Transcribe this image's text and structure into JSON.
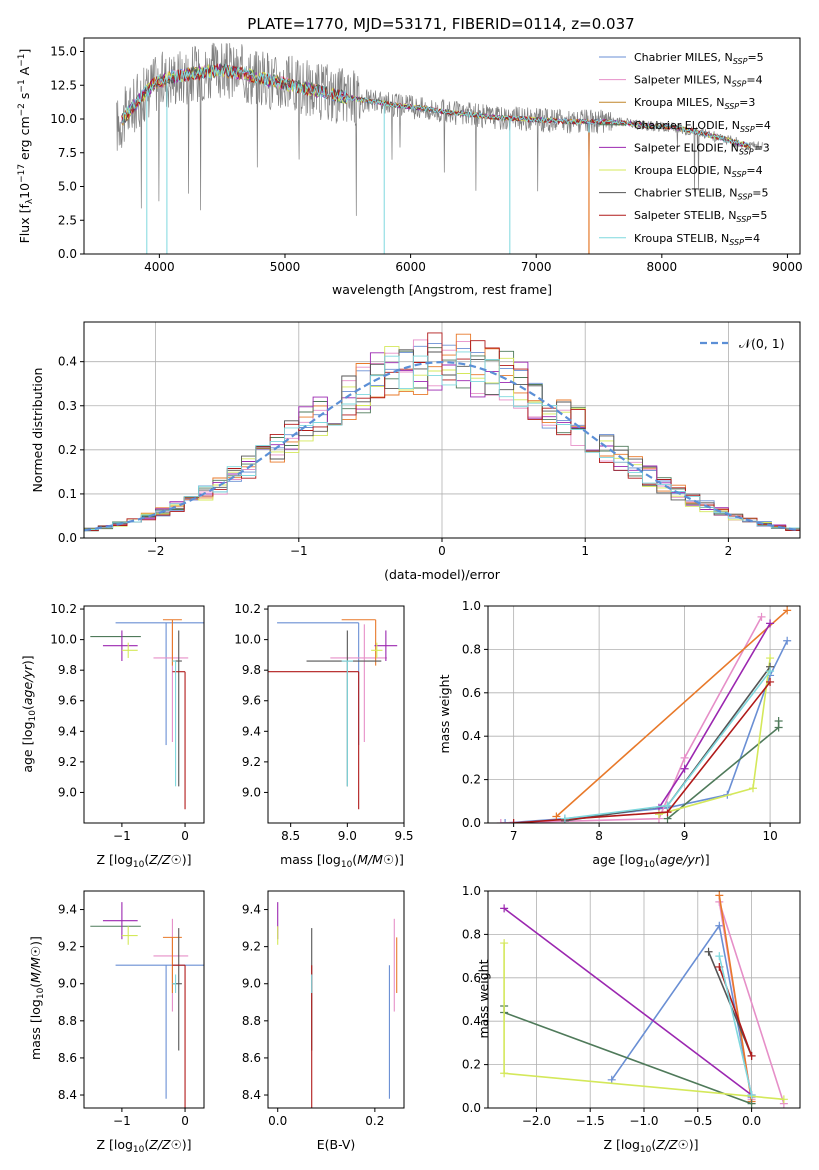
{
  "title": "PLATE=1770, MJD=53171, FIBERID=0114, z=0.037",
  "colors": {
    "Chabrier MILES": "#6a8fd4",
    "Salpeter MILES": "#e68fc8",
    "Kroupa MILES": "#c0862a",
    "Chabrier ELODIE": "#4f7a5a",
    "Salpeter ELODIE": "#9b27b0",
    "Kroupa ELODIE": "#d4e85a",
    "Chabrier STELIB": "#555555",
    "Salpeter STELIB": "#b01a1a",
    "Kroupa STELIB": "#7fd8de",
    "orange": "#e8792a",
    "grid": "#b0b0b0",
    "observed": "#808080",
    "normal": "#5b8fd6"
  },
  "chart_data": [
    {
      "id": "spectrum",
      "type": "line",
      "title": "PLATE=1770, MJD=53171, FIBERID=0114, z=0.037",
      "xlabel": "wavelength [Angstrom, rest frame]",
      "ylabel_main": "Flux [f",
      "ylabel_sub": "λ",
      "ylabel_rest": "10",
      "ylabel_exp1": "−17",
      "ylabel_mid": " erg cm",
      "ylabel_exp2": "−2",
      "ylabel_s": " s",
      "ylabel_exp3": "−1",
      "ylabel_a": " A",
      "ylabel_exp4": "−1",
      "ylabel_end": "]",
      "xlim": [
        3400,
        9100
      ],
      "ylim": [
        0,
        16
      ],
      "xticks": [
        "4000",
        "5000",
        "6000",
        "7000",
        "8000",
        "9000"
      ],
      "xtick_values": [
        4000,
        5000,
        6000,
        7000,
        8000,
        9000
      ],
      "yticks": [
        "0.0",
        "2.5",
        "5.0",
        "7.5",
        "10.0",
        "12.5",
        "15.0"
      ],
      "ytick_values": [
        0,
        2.5,
        5,
        7.5,
        10,
        12.5,
        15
      ],
      "continuum": {
        "x": [
          3660,
          3800,
          3950,
          4100,
          4300,
          4500,
          4700,
          4900,
          5100,
          5300,
          5500,
          5700,
          5900,
          6100,
          6300,
          6500,
          6700,
          6900,
          7100,
          7300,
          7500,
          7700,
          7900,
          8100,
          8300,
          8500,
          8700
        ],
        "y": [
          9.5,
          11.0,
          12.6,
          13.1,
          13.4,
          13.6,
          13.3,
          12.8,
          12.4,
          12.0,
          11.6,
          11.3,
          11.0,
          10.8,
          10.5,
          10.3,
          10.1,
          10.0,
          9.9,
          9.8,
          9.8,
          9.7,
          9.5,
          9.4,
          9.0,
          8.5,
          8.0
        ]
      },
      "legend": [
        {
          "name": "Chabrier MILES",
          "n": "5"
        },
        {
          "name": "Salpeter MILES",
          "n": "4"
        },
        {
          "name": "Kroupa MILES",
          "n": "3"
        },
        {
          "name": "Chabrier ELODIE",
          "n": "4"
        },
        {
          "name": "Salpeter ELODIE",
          "n": "3"
        },
        {
          "name": "Kroupa ELODIE",
          "n": "4"
        },
        {
          "name": "Chabrier STELIB",
          "n": "5"
        },
        {
          "name": "Salpeter STELIB",
          "n": "5"
        },
        {
          "name": "Kroupa STELIB",
          "n": "4"
        }
      ],
      "legend_n_prefix": ", N",
      "legend_n_sub": "SSP",
      "legend_n_eq": "="
    },
    {
      "id": "residuals",
      "type": "histogram",
      "xlabel": "(data-model)/error",
      "ylabel": "Normed distribution",
      "xlim": [
        -2.5,
        2.5
      ],
      "ylim": [
        0,
        0.49
      ],
      "xticks": [
        "−2",
        "−1",
        "0",
        "1",
        "2"
      ],
      "xtick_values": [
        -2,
        -1,
        0,
        1,
        2
      ],
      "yticks": [
        "0.0",
        "0.1",
        "0.2",
        "0.3",
        "0.4"
      ],
      "ytick_values": [
        0,
        0.1,
        0.2,
        0.3,
        0.4
      ],
      "bin_width": 0.1,
      "legend": "𝒩(0, 1)",
      "series": [
        {
          "name": "Chabrier MILES",
          "values": [
            0.02,
            0.03,
            0.03,
            0.05,
            0.06,
            0.07,
            0.09,
            0.08,
            0.1,
            0.12,
            0.13,
            0.15,
            0.17,
            0.2,
            0.21,
            0.24,
            0.25,
            0.28,
            0.3,
            0.32,
            0.33,
            0.35,
            0.36,
            0.37,
            0.38,
            0.39,
            0.4,
            0.41,
            0.42,
            0.43,
            0.42,
            0.4,
            0.39,
            0.39,
            0.37,
            0.36,
            0.35,
            0.34,
            0.33,
            0.34,
            0.31,
            0.3,
            0.28,
            0.27,
            0.25,
            0.24,
            0.22,
            0.2,
            0.18,
            0.16
          ]
        }
      ]
    },
    {
      "id": "Z-age",
      "type": "scatter",
      "xlabel": "Z [log",
      "ylabel": "age  [log",
      "xlim": [
        -1.6,
        0.3
      ],
      "ylim": [
        8.8,
        10.22
      ],
      "xticks": [
        "−1",
        "0"
      ],
      "xtick_values": [
        -1,
        0
      ],
      "yticks": [
        "9.0",
        "9.2",
        "9.4",
        "9.6",
        "9.8",
        "10.0",
        "10.2"
      ],
      "ytick_values": [
        9.0,
        9.2,
        9.4,
        9.6,
        9.8,
        10.0,
        10.2
      ]
    },
    {
      "id": "mass-age",
      "type": "scatter",
      "xlabel": "mass [log",
      "xlim": [
        8.3,
        9.5
      ],
      "ylim": [
        8.8,
        10.22
      ],
      "xticks": [
        "8.5",
        "9.0",
        "9.5"
      ],
      "xtick_values": [
        8.5,
        9.0,
        9.5
      ],
      "yticks": [
        "9.0",
        "9.2",
        "9.4",
        "9.6",
        "9.8",
        "10.0",
        "10.2"
      ],
      "ytick_values": [
        9.0,
        9.2,
        9.4,
        9.6,
        9.8,
        10.0,
        10.2
      ]
    },
    {
      "id": "age-weight",
      "type": "line",
      "xlabel": "age  [log",
      "ylabel": "mass weight",
      "xlim": [
        6.7,
        10.35
      ],
      "ylim": [
        0,
        1.0
      ],
      "xticks": [
        "7",
        "8",
        "9",
        "10"
      ],
      "xtick_values": [
        7,
        8,
        9,
        10
      ],
      "yticks": [
        "0.0",
        "0.2",
        "0.4",
        "0.6",
        "0.8",
        "1.0"
      ],
      "ytick_values": [
        0,
        0.2,
        0.4,
        0.6,
        0.8,
        1.0
      ]
    },
    {
      "id": "Z-mass",
      "type": "scatter",
      "xlabel": "Z [log",
      "ylabel": "mass [log",
      "xlim": [
        -1.6,
        0.3
      ],
      "ylim": [
        8.33,
        9.5
      ],
      "xticks": [
        "−1",
        "0"
      ],
      "xtick_values": [
        -1,
        0
      ],
      "yticks": [
        "8.4",
        "8.6",
        "8.8",
        "9.0",
        "9.2",
        "9.4"
      ],
      "ytick_values": [
        8.4,
        8.6,
        8.8,
        9.0,
        9.2,
        9.4
      ]
    },
    {
      "id": "ebv-mass",
      "type": "scatter",
      "xlabel": "E(B-V)",
      "xlim": [
        -0.02,
        0.26
      ],
      "ylim": [
        8.33,
        9.5
      ],
      "xticks": [
        "0.0",
        "0.2"
      ],
      "xtick_values": [
        0.0,
        0.2
      ],
      "yticks": [
        "8.4",
        "8.6",
        "8.8",
        "9.0",
        "9.2",
        "9.4"
      ],
      "ytick_values": [
        8.4,
        8.6,
        8.8,
        9.0,
        9.2,
        9.4
      ]
    },
    {
      "id": "Z-weight",
      "type": "line",
      "xlabel": "Z [log",
      "ylabel": "mass weight",
      "xlim": [
        -2.45,
        0.45
      ],
      "ylim": [
        0,
        1.0
      ],
      "xticks": [
        "−2.0",
        "−1.5",
        "−1.0",
        "−0.5",
        "0.0"
      ],
      "xtick_values": [
        -2.0,
        -1.5,
        -1.0,
        -0.5,
        0.0
      ],
      "yticks": [
        "0.0",
        "0.2",
        "0.4",
        "0.6",
        "0.8",
        "1.0"
      ],
      "ytick_values": [
        0,
        0.2,
        0.4,
        0.6,
        0.8,
        1.0
      ]
    }
  ],
  "models": [
    {
      "name": "Chabrier MILES",
      "Z": -0.3,
      "Zlo": 0.8,
      "Zhi": 0.65,
      "age": 10.11,
      "agelo": 0.8,
      "agehi": 0.0,
      "mass": 9.1,
      "masslo": 0.72,
      "masshi": 0.0,
      "ebv": 0.23,
      "age_pts": [
        [
          6.9,
          0.0
        ],
        [
          7.6,
          0.02
        ],
        [
          8.8,
          0.07
        ],
        [
          9.5,
          0.13
        ],
        [
          10.0,
          0.68
        ],
        [
          10.2,
          0.84
        ]
      ],
      "Z_pts": [
        [
          -1.3,
          0.13
        ],
        [
          -0.3,
          0.84
        ],
        [
          0.0,
          0.05
        ]
      ]
    },
    {
      "name": "Salpeter MILES",
      "Z": -0.2,
      "Zlo": 0.3,
      "Zhi": 0.25,
      "age": 9.88,
      "agelo": 0.55,
      "agehi": 0.22,
      "mass": 9.15,
      "masslo": 0.3,
      "masshi": 0.2,
      "ebv": 0.24,
      "age_pts": [
        [
          6.85,
          0.0
        ],
        [
          8.7,
          0.02
        ],
        [
          9.0,
          0.3
        ],
        [
          9.9,
          0.95
        ]
      ],
      "Z_pts": [
        [
          0.0,
          0.04
        ],
        [
          -0.3,
          0.95
        ],
        [
          0.3,
          0.02
        ]
      ]
    },
    {
      "name": "Kroupa MILES",
      "Z": -0.2,
      "Zlo": 0.15,
      "Zhi": 0.15,
      "age": 10.13,
      "agelo": 0.3,
      "agehi": 0.0,
      "mass": 9.25,
      "masslo": 0.3,
      "masshi": 0.0,
      "ebv": 0.245,
      "age_pts": [
        [
          7.5,
          0.03
        ],
        [
          10.2,
          0.98
        ]
      ],
      "Z_pts": [
        [
          0.0,
          0.03
        ],
        [
          -0.3,
          0.98
        ]
      ]
    },
    {
      "name": "Chabrier ELODIE",
      "Z": -1.5,
      "Zlo": 0.0,
      "Zhi": 0.8,
      "age": 10.02,
      "agelo": 0.0,
      "agehi": 0.0,
      "mass": 9.31,
      "masslo": 0.0,
      "masshi": 0.0,
      "ebv": 0.0,
      "age_pts": [
        [
          8.8,
          0.02
        ],
        [
          10.1,
          0.44
        ],
        [
          10.1,
          0.47
        ]
      ],
      "Z_pts": [
        [
          -2.3,
          0.47
        ],
        [
          -2.3,
          0.44
        ],
        [
          0.0,
          0.02
        ]
      ]
    },
    {
      "name": "Salpeter ELODIE",
      "Z": -1.0,
      "Zlo": 0.3,
      "Zhi": 0.25,
      "age": 9.96,
      "agelo": 0.1,
      "agehi": 0.1,
      "mass": 9.34,
      "masslo": 0.1,
      "masshi": 0.1,
      "ebv": 0.0,
      "age_pts": [
        [
          8.7,
          0.07
        ],
        [
          9.0,
          0.25
        ],
        [
          10.0,
          0.92
        ]
      ],
      "Z_pts": [
        [
          -2.3,
          0.92
        ],
        [
          0.0,
          0.06
        ]
      ]
    },
    {
      "name": "Kroupa ELODIE",
      "Z": -0.9,
      "Zlo": 0.1,
      "Zhi": 0.15,
      "age": 9.93,
      "agelo": 0.05,
      "agehi": 0.05,
      "mass": 9.26,
      "masslo": 0.05,
      "masshi": 0.05,
      "ebv": 0.0,
      "age_pts": [
        [
          8.7,
          0.04
        ],
        [
          9.8,
          0.16
        ],
        [
          10.0,
          0.76
        ]
      ],
      "Z_pts": [
        [
          -2.3,
          0.76
        ],
        [
          -2.3,
          0.16
        ],
        [
          0.3,
          0.04
        ]
      ]
    },
    {
      "name": "Chabrier STELIB",
      "Z": -0.1,
      "Zlo": 0.1,
      "Zhi": 0.05,
      "age": 9.86,
      "agelo": 0.82,
      "agehi": 0.2,
      "mass": 9.0,
      "masslo": 0.36,
      "masshi": 0.3,
      "ebv": 0.07,
      "age_pts": [
        [
          7.6,
          0.01
        ],
        [
          8.8,
          0.08
        ],
        [
          10.0,
          0.72
        ]
      ],
      "Z_pts": [
        [
          0.0,
          0.24
        ],
        [
          -0.4,
          0.72
        ]
      ]
    },
    {
      "name": "Salpeter STELIB",
      "Z": 0.0,
      "Zlo": 0.2,
      "Zhi": 0.0,
      "age": 9.79,
      "agelo": 0.9,
      "agehi": 0.0,
      "mass": 9.1,
      "masslo": 0.8,
      "masshi": 0.0,
      "ebv": 0.07,
      "age_pts": [
        [
          7.0,
          0.0
        ],
        [
          8.8,
          0.05
        ],
        [
          10.0,
          0.65
        ]
      ],
      "Z_pts": [
        [
          0.0,
          0.24
        ],
        [
          -0.3,
          0.65
        ]
      ]
    },
    {
      "name": "Kroupa STELIB",
      "Z": -0.15,
      "Zlo": 0.05,
      "Zhi": 0.0,
      "age": 9.86,
      "agelo": 0.82,
      "agehi": 0.0,
      "mass": 9.0,
      "masslo": 0.05,
      "masshi": 0.05,
      "ebv": 0.07,
      "age_pts": [
        [
          7.6,
          0.02
        ],
        [
          8.8,
          0.08
        ],
        [
          10.0,
          0.7
        ]
      ],
      "Z_pts": [
        [
          0.0,
          0.06
        ],
        [
          -0.3,
          0.7
        ]
      ]
    }
  ]
}
